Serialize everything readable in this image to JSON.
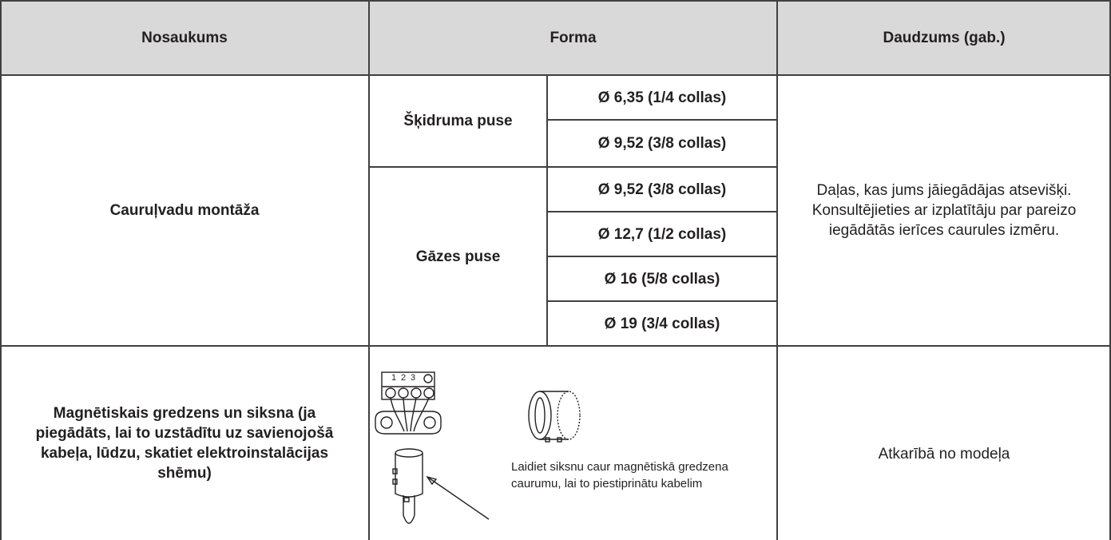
{
  "table": {
    "header": [
      "Nosaukums",
      "Forma",
      "Daudzums (gab.)"
    ],
    "rows": [
      {
        "name": "Cauruļvadu montāža",
        "groups": [
          {
            "side": "Šķidruma puse",
            "sizes": [
              "Ø 6,35 (1/4 collas)",
              "Ø 9,52 (3/8 collas)"
            ]
          },
          {
            "side": "Gāzes puse",
            "sizes": [
              "Ø 9,52 (3/8 collas)",
              "Ø 12,7 (1/2 collas)",
              "Ø 16 (5/8 collas)",
              "Ø 19 (3/4 collas)"
            ]
          }
        ],
        "quantity": "Daļas, kas jums jāiegādājas atsevišķi. Konsultējieties ar izplatītāju par pareizo iegādātās ierīces caurules izmēru."
      },
      {
        "name": "Magnētiskais gredzens un siksna (ja piegādāts, lai to uzstādītu uz savienojošā kabeļa, lūdzu, skatiet elektroinstalācijas shēmu)",
        "figure": {
          "terminals": [
            "1",
            "2",
            "3"
          ],
          "caption": "Laidiet siksnu caur magnētiskā gredzena caurumu, lai to piestiprinātu kabelim"
        },
        "quantity": "Atkarībā no modeļa"
      }
    ]
  }
}
